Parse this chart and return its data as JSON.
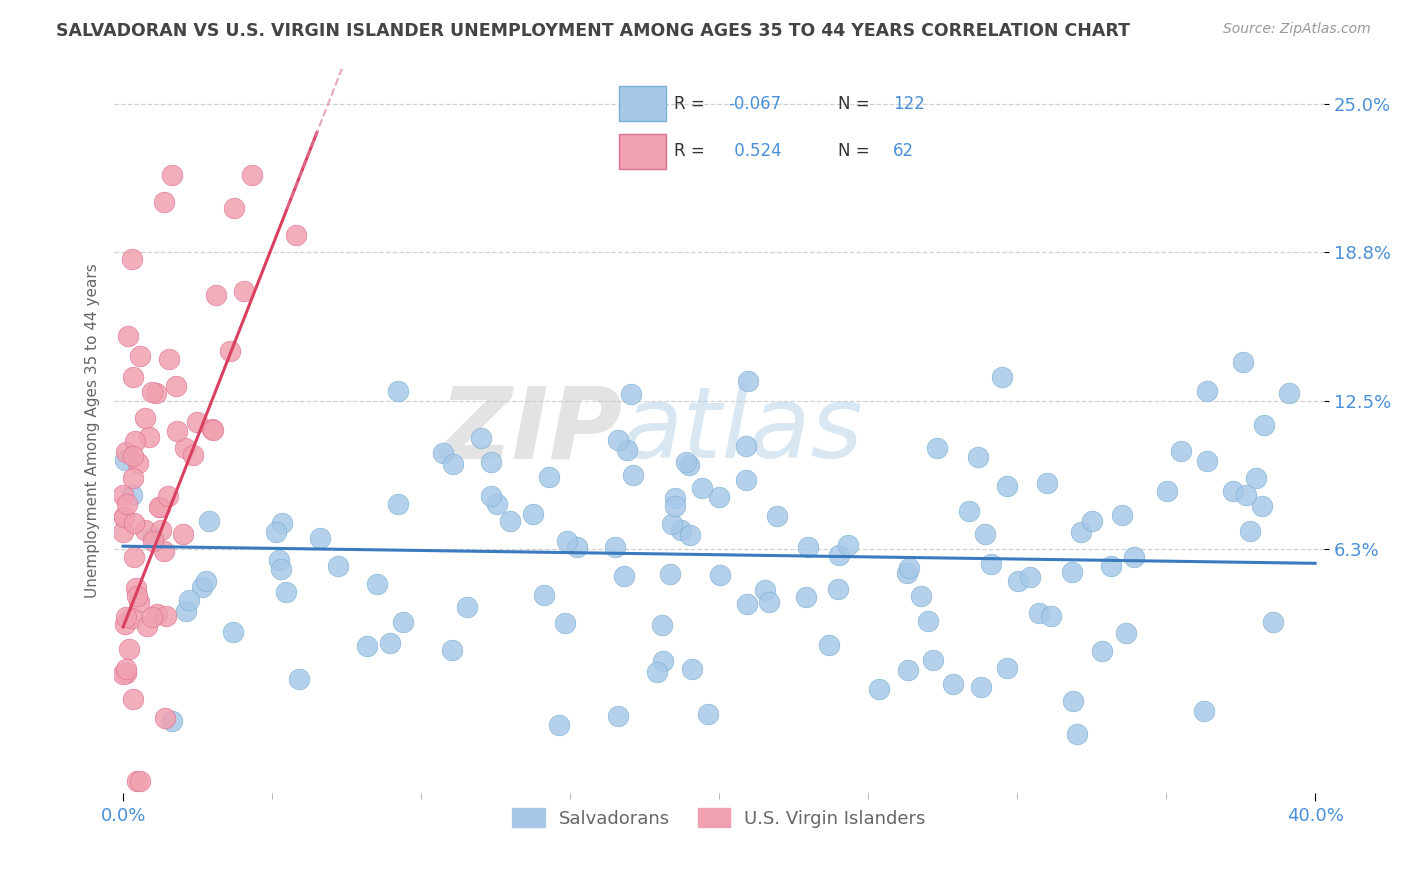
{
  "title": "SALVADORAN VS U.S. VIRGIN ISLANDER UNEMPLOYMENT AMONG AGES 35 TO 44 YEARS CORRELATION CHART",
  "source": "Source: ZipAtlas.com",
  "ylabel": "Unemployment Among Ages 35 to 44 years",
  "xlim": [
    -0.003,
    0.403
  ],
  "ylim": [
    -0.04,
    0.265
  ],
  "ytick_vals": [
    0.063,
    0.125,
    0.188,
    0.25
  ],
  "ytick_labels": [
    "6.3%",
    "12.5%",
    "18.8%",
    "25.0%"
  ],
  "blue_dot_color": "#a8c8e8",
  "blue_dot_edge": "#7aafd4",
  "pink_dot_color": "#f0a0b0",
  "pink_dot_edge": "#e07090",
  "trend_blue_color": "#3a7abf",
  "trend_pink_solid_color": "#d94060",
  "trend_pink_dash_color": "#e080a0",
  "legend_blue_label": "Salvadorans",
  "legend_pink_label": "U.S. Virgin Islanders",
  "R_blue": -0.067,
  "N_blue": 122,
  "R_pink": 0.524,
  "N_pink": 62,
  "watermark_zip": "ZIP",
  "watermark_atlas": "atlas",
  "title_color": "#444444",
  "axis_label_color": "#666666",
  "tick_label_color": "#4a90d9",
  "grid_color": "#d0d0d0",
  "background_color": "#ffffff",
  "legend_box_color": "#e8e8f8",
  "legend_border_color": "#b0b8d0"
}
